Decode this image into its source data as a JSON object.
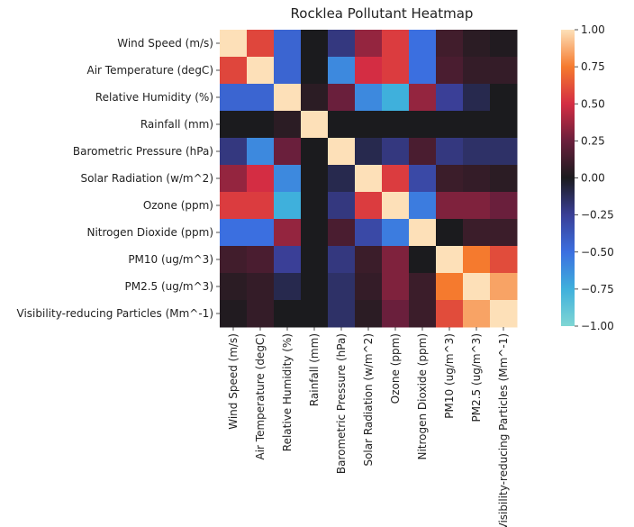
{
  "chart_data": {
    "type": "heatmap",
    "title": "Rocklea Pollutant Heatmap",
    "labels": [
      "Wind Speed (m/s)",
      "Air Temperature (degC)",
      "Relative Humidity (%)",
      "Rainfall (mm)",
      "Barometric Pressure (hPa)",
      "Solar Radiation (w/m^2)",
      "Ozone (ppm)",
      "Nitrogen Dioxide (ppm)",
      "PM10 (ug/m^3)",
      "PM2.5 (ug/m^3)",
      "Visibility-reducing Particles (Mm^-1)"
    ],
    "values": [
      [
        1.0,
        0.58,
        -0.45,
        0.0,
        -0.2,
        0.35,
        0.55,
        -0.5,
        0.12,
        0.05,
        0.02
      ],
      [
        0.58,
        1.0,
        -0.45,
        0.0,
        -0.6,
        0.5,
        0.55,
        -0.5,
        0.15,
        0.08,
        0.08
      ],
      [
        -0.45,
        -0.45,
        1.0,
        0.05,
        0.25,
        -0.6,
        -0.75,
        0.35,
        -0.25,
        -0.1,
        0.0
      ],
      [
        0.0,
        0.0,
        0.05,
        1.0,
        0.0,
        0.0,
        0.0,
        0.0,
        0.0,
        0.0,
        0.0
      ],
      [
        -0.2,
        -0.6,
        0.25,
        0.0,
        1.0,
        -0.1,
        -0.2,
        0.15,
        -0.2,
        -0.15,
        -0.15
      ],
      [
        0.35,
        0.5,
        -0.6,
        0.0,
        -0.1,
        1.0,
        0.55,
        -0.3,
        0.1,
        0.08,
        0.05
      ],
      [
        0.55,
        0.55,
        -0.75,
        0.0,
        -0.2,
        0.55,
        1.0,
        -0.55,
        0.3,
        0.3,
        0.25
      ],
      [
        -0.5,
        -0.5,
        0.35,
        0.0,
        0.15,
        -0.3,
        -0.55,
        1.0,
        0.0,
        0.1,
        0.1
      ],
      [
        0.12,
        0.15,
        -0.25,
        0.0,
        -0.2,
        0.1,
        0.3,
        0.0,
        1.0,
        0.75,
        0.6
      ],
      [
        0.05,
        0.08,
        -0.1,
        0.0,
        -0.15,
        0.08,
        0.3,
        0.1,
        0.75,
        1.0,
        0.85
      ],
      [
        0.02,
        0.08,
        0.0,
        0.0,
        -0.15,
        0.05,
        0.25,
        0.1,
        0.6,
        0.85,
        1.0
      ]
    ],
    "vmin": -1.0,
    "vmax": 1.0,
    "colorbar_ticks": [
      1.0,
      0.75,
      0.5,
      0.25,
      0.0,
      -0.25,
      -0.5,
      -0.75,
      -1.0
    ],
    "colorbar_tick_labels": [
      "1.00",
      "0.75",
      "0.50",
      "0.25",
      "0.00",
      "−0.25",
      "−0.50",
      "−0.75",
      "−1.00"
    ],
    "colormap": "icefire",
    "colormap_stops": [
      [
        -1.0,
        "#7fd6d4"
      ],
      [
        -0.75,
        "#3fb0dc"
      ],
      [
        -0.5,
        "#3b6fe0"
      ],
      [
        -0.25,
        "#3a3f97"
      ],
      [
        0.0,
        "#1b1b1e"
      ],
      [
        0.25,
        "#6a1f3c"
      ],
      [
        0.5,
        "#d42d43"
      ],
      [
        0.75,
        "#f57a2e"
      ],
      [
        1.0,
        "#fde0b8"
      ]
    ],
    "grid": false
  }
}
